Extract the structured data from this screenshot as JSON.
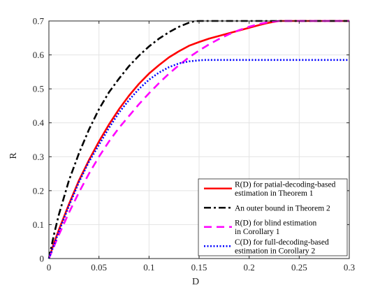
{
  "chart_data": {
    "type": "line",
    "xlabel": "D",
    "ylabel": "R",
    "xlim": [
      0,
      0.3
    ],
    "ylim": [
      0,
      0.7
    ],
    "xticks": [
      "0",
      "0.05",
      "0.1",
      "0.15",
      "0.2",
      "0.25",
      "0.3"
    ],
    "yticks": [
      "0",
      "0.1",
      "0.2",
      "0.3",
      "0.4",
      "0.5",
      "0.6",
      "0.7"
    ],
    "grid": true,
    "legend_position": "bottom-right",
    "series": [
      {
        "legend": [
          "R(D) for patial-decoding-based",
          "estimation in Theorem 1"
        ],
        "color": "#ff0000",
        "style": "solid",
        "x": [
          0,
          0.005,
          0.01,
          0.02,
          0.03,
          0.04,
          0.05,
          0.06,
          0.07,
          0.08,
          0.09,
          0.1,
          0.11,
          0.12,
          0.13,
          0.14,
          0.15,
          0.16,
          0.17,
          0.18,
          0.19,
          0.2,
          0.21,
          0.22,
          0.23,
          0.24,
          0.3
        ],
        "y": [
          0,
          0.045,
          0.085,
          0.16,
          0.23,
          0.29,
          0.345,
          0.395,
          0.44,
          0.48,
          0.515,
          0.545,
          0.57,
          0.593,
          0.611,
          0.627,
          0.638,
          0.648,
          0.656,
          0.664,
          0.672,
          0.68,
          0.688,
          0.695,
          0.7,
          0.7,
          0.7
        ]
      },
      {
        "legend": [
          "An outer bound in Theorem 2"
        ],
        "color": "#000000",
        "style": "dashdot",
        "x": [
          0,
          0.005,
          0.01,
          0.02,
          0.03,
          0.04,
          0.05,
          0.06,
          0.07,
          0.08,
          0.09,
          0.1,
          0.11,
          0.12,
          0.13,
          0.14,
          0.145,
          0.15,
          0.3
        ],
        "y": [
          0,
          0.07,
          0.13,
          0.23,
          0.31,
          0.38,
          0.44,
          0.49,
          0.53,
          0.567,
          0.598,
          0.625,
          0.648,
          0.667,
          0.683,
          0.695,
          0.699,
          0.7,
          0.7
        ]
      },
      {
        "legend": [
          "R(D) for blind estimation",
          "in Corollary 1"
        ],
        "color": "#ff00ff",
        "style": "dashed",
        "x": [
          0,
          0.01,
          0.02,
          0.03,
          0.04,
          0.05,
          0.06,
          0.07,
          0.08,
          0.09,
          0.1,
          0.11,
          0.12,
          0.13,
          0.14,
          0.15,
          0.16,
          0.17,
          0.18,
          0.19,
          0.2,
          0.21,
          0.22,
          0.23,
          0.235,
          0.3
        ],
        "y": [
          0,
          0.07,
          0.135,
          0.195,
          0.25,
          0.3,
          0.345,
          0.385,
          0.42,
          0.455,
          0.487,
          0.517,
          0.545,
          0.57,
          0.593,
          0.613,
          0.631,
          0.647,
          0.661,
          0.673,
          0.683,
          0.691,
          0.697,
          0.7,
          0.7,
          0.7
        ]
      },
      {
        "legend": [
          "C(D) for full-decoding-based",
          "estimation in Corollary 2"
        ],
        "color": "#0000ff",
        "style": "dotted",
        "x": [
          0,
          0.005,
          0.01,
          0.02,
          0.03,
          0.04,
          0.05,
          0.06,
          0.07,
          0.08,
          0.09,
          0.1,
          0.11,
          0.12,
          0.13,
          0.14,
          0.15,
          0.155,
          0.16,
          0.3
        ],
        "y": [
          0,
          0.04,
          0.08,
          0.155,
          0.225,
          0.285,
          0.335,
          0.385,
          0.43,
          0.467,
          0.5,
          0.527,
          0.548,
          0.564,
          0.575,
          0.581,
          0.584,
          0.585,
          0.585,
          0.585
        ]
      }
    ]
  }
}
